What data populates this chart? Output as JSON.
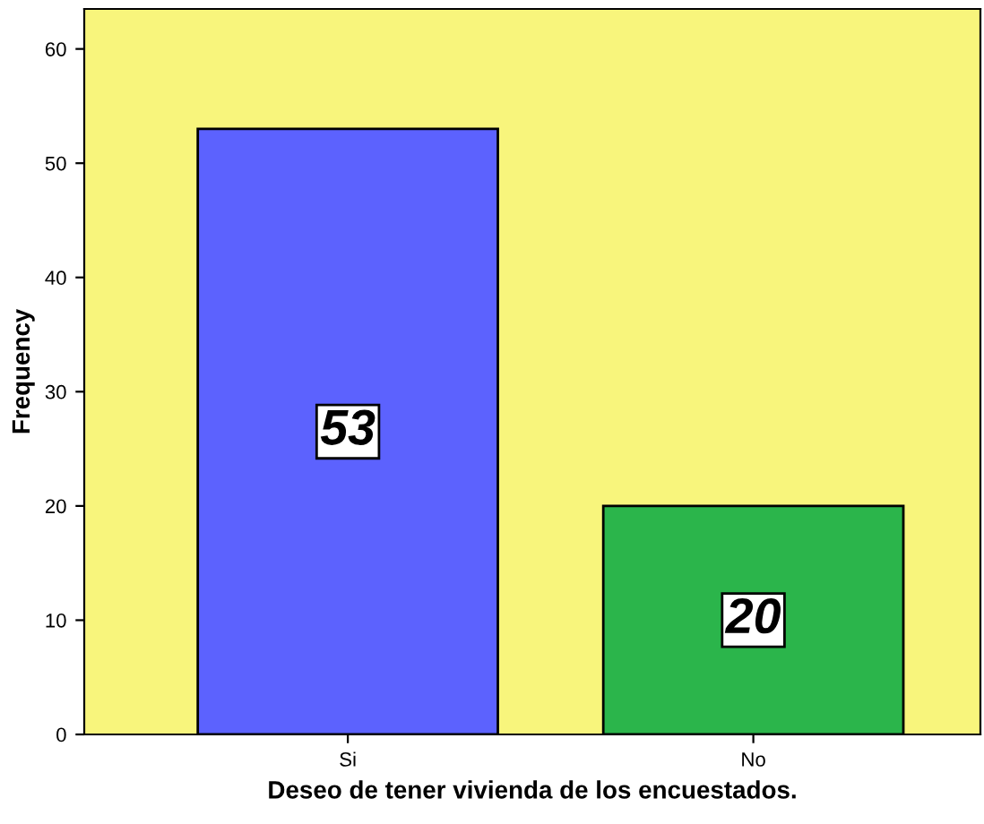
{
  "chart_data": {
    "type": "bar",
    "xlabel": "Deseo de tener vivienda de los encuestados.",
    "ylabel": "Frequency",
    "categories": [
      "Si",
      "No"
    ],
    "values": [
      53,
      20
    ],
    "colors": [
      "#5c62fe",
      "#2bb54b"
    ],
    "ylim": [
      0,
      63.5
    ],
    "yticks": [
      0,
      10,
      20,
      30,
      40,
      50,
      60
    ],
    "grid": false,
    "data_labels": true
  }
}
